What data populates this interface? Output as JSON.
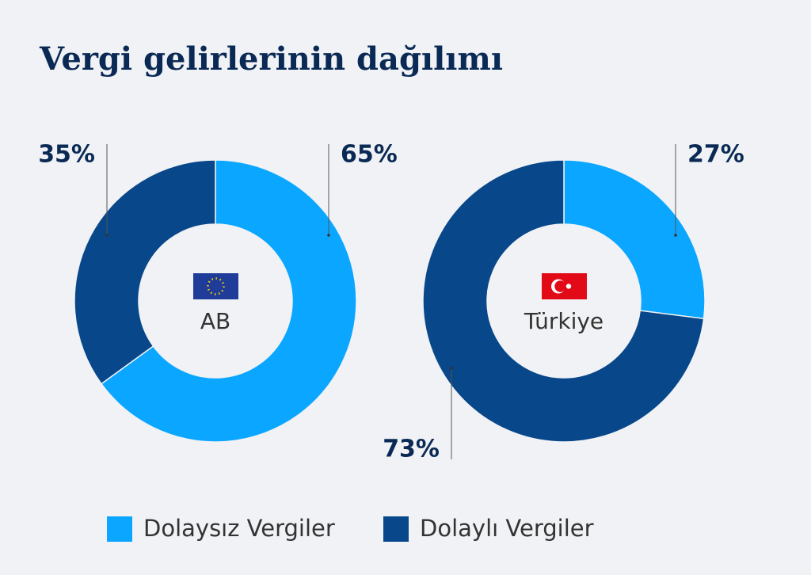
{
  "title": "Vergi gelirlerinin dağılımı",
  "chart_data": [
    {
      "type": "pie",
      "donut": true,
      "center_label": "AB",
      "categories": [
        "Dolaysız Vergiler",
        "Dolaylı Vergiler"
      ],
      "values": [
        65,
        35
      ],
      "value_labels": [
        "65%",
        "35%"
      ],
      "colors": [
        "#0aa6ff",
        "#07478a"
      ]
    },
    {
      "type": "pie",
      "donut": true,
      "center_label": "Türkiye",
      "categories": [
        "Dolaysız Vergiler",
        "Dolaylı Vergiler"
      ],
      "values": [
        27,
        73
      ],
      "value_labels": [
        "27%",
        "73%"
      ],
      "colors": [
        "#0aa6ff",
        "#07478a"
      ]
    }
  ]
}
